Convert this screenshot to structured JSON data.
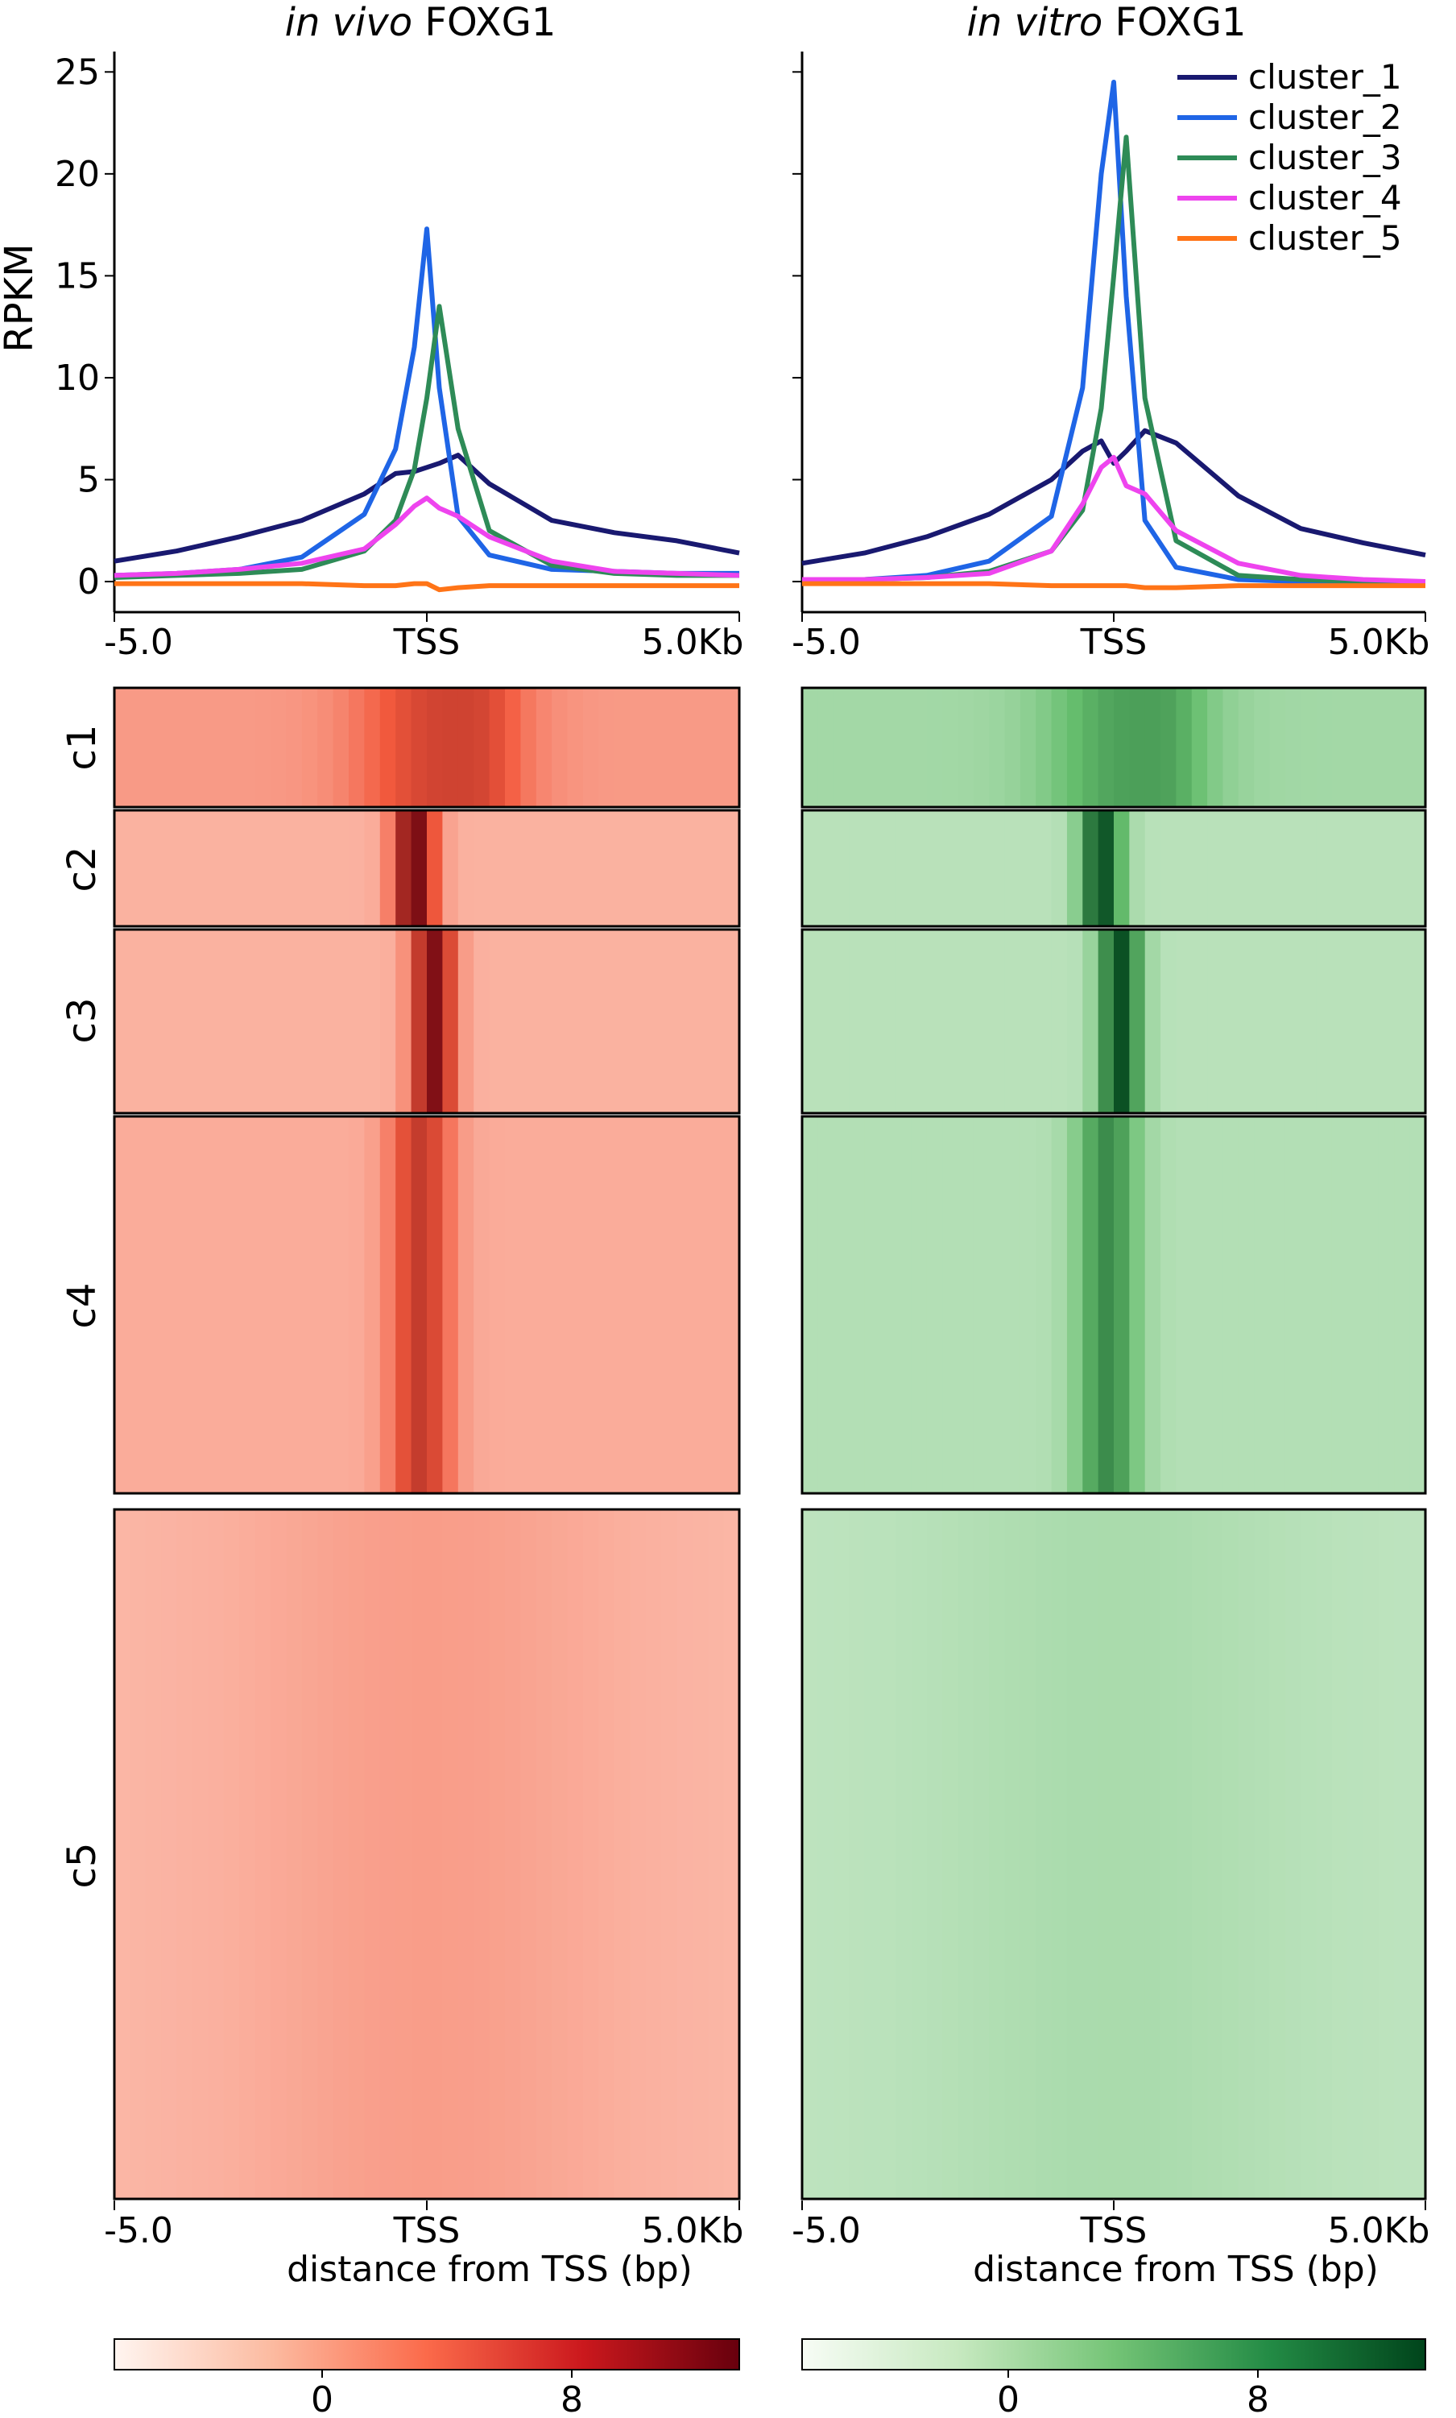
{
  "profiles": [
    {
      "title_italic": "in vivo",
      "title_rest": " FOXG1"
    },
    {
      "title_italic": "in vitro",
      "title_rest": " FOXG1"
    }
  ],
  "profile_ylabel": "RPKM",
  "profile_yticks": [
    "0",
    "5",
    "10",
    "15",
    "20",
    "25"
  ],
  "xticks": [
    "-5.0",
    "TSS",
    "5.0Kb"
  ],
  "heatmap_xlabel": "distance from TSS (bp)",
  "cluster_labels": [
    "c1",
    "c2",
    "c3",
    "c4",
    "c5"
  ],
  "colorbar_ticks": [
    "0",
    "8"
  ],
  "colors": {
    "cluster_1": "#191970",
    "cluster_2": "#1f65e6",
    "cluster_3": "#2e8b57",
    "cluster_4": "#ee44ee",
    "cluster_5": "#ff7417",
    "heatmap_left_low": "#fff5f0",
    "heatmap_left_high": "#67000d",
    "heatmap_right_low": "#f7fcf5",
    "heatmap_right_high": "#00441b"
  },
  "chart_data": [
    {
      "type": "line",
      "title": "in vivo FOXG1",
      "ylabel": "RPKM",
      "xlabel": "",
      "x": [
        -5000,
        -4000,
        -3000,
        -2000,
        -1000,
        -500,
        -200,
        0,
        200,
        500,
        1000,
        2000,
        3000,
        4000,
        5000
      ],
      "ylim": [
        -1.5,
        26
      ],
      "series": [
        {
          "name": "cluster_1",
          "values": [
            1.0,
            1.5,
            2.2,
            3.0,
            4.3,
            5.3,
            5.4,
            5.6,
            5.8,
            6.2,
            4.8,
            3.0,
            2.4,
            2.0,
            1.4
          ]
        },
        {
          "name": "cluster_2",
          "values": [
            0.3,
            0.4,
            0.6,
            1.2,
            3.3,
            6.5,
            11.5,
            17.3,
            9.5,
            3.2,
            1.3,
            0.6,
            0.5,
            0.4,
            0.4
          ]
        },
        {
          "name": "cluster_3",
          "values": [
            0.2,
            0.3,
            0.4,
            0.6,
            1.5,
            3.0,
            5.5,
            9.0,
            13.5,
            7.5,
            2.5,
            0.8,
            0.4,
            0.3,
            0.3
          ]
        },
        {
          "name": "cluster_4",
          "values": [
            0.3,
            0.4,
            0.6,
            0.9,
            1.6,
            2.8,
            3.7,
            4.1,
            3.6,
            3.2,
            2.2,
            1.0,
            0.5,
            0.4,
            0.3
          ]
        },
        {
          "name": "cluster_5",
          "values": [
            -0.1,
            -0.1,
            -0.1,
            -0.1,
            -0.2,
            -0.2,
            -0.1,
            -0.1,
            -0.4,
            -0.3,
            -0.2,
            -0.2,
            -0.2,
            -0.2,
            -0.2
          ]
        }
      ]
    },
    {
      "type": "line",
      "title": "in vitro FOXG1",
      "ylabel": "",
      "xlabel": "",
      "x": [
        -5000,
        -4000,
        -3000,
        -2000,
        -1000,
        -500,
        -200,
        0,
        200,
        500,
        1000,
        2000,
        3000,
        4000,
        5000
      ],
      "ylim": [
        -1.5,
        26
      ],
      "series": [
        {
          "name": "cluster_1",
          "values": [
            0.9,
            1.4,
            2.2,
            3.3,
            5.0,
            6.4,
            6.9,
            5.8,
            6.4,
            7.4,
            6.8,
            4.2,
            2.6,
            1.9,
            1.3
          ]
        },
        {
          "name": "cluster_2",
          "values": [
            0.0,
            0.1,
            0.3,
            1.0,
            3.2,
            9.5,
            20.0,
            24.5,
            14.0,
            3.0,
            0.7,
            0.1,
            0.0,
            0.0,
            0.0
          ]
        },
        {
          "name": "cluster_3",
          "values": [
            0.0,
            0.1,
            0.2,
            0.5,
            1.5,
            3.5,
            8.5,
            15.0,
            21.8,
            9.0,
            2.0,
            0.3,
            0.1,
            0.0,
            0.0
          ]
        },
        {
          "name": "cluster_4",
          "values": [
            0.1,
            0.1,
            0.2,
            0.4,
            1.5,
            3.8,
            5.6,
            6.1,
            4.7,
            4.3,
            2.5,
            0.9,
            0.3,
            0.1,
            0.0
          ]
        },
        {
          "name": "cluster_5",
          "values": [
            -0.1,
            -0.1,
            -0.1,
            -0.1,
            -0.2,
            -0.2,
            -0.2,
            -0.2,
            -0.2,
            -0.3,
            -0.3,
            -0.2,
            -0.2,
            -0.2,
            -0.2
          ]
        }
      ]
    },
    {
      "type": "heatmap",
      "title": "",
      "xlabel": "distance from TSS (bp)",
      "x_ticks": [
        "-5.0",
        "TSS",
        "5.0Kb"
      ],
      "row_groups": [
        "c1",
        "c2",
        "c3",
        "c4",
        "c5"
      ],
      "colorbar": {
        "label_ticks": [
          0,
          8
        ],
        "range": [
          -4,
          12
        ],
        "palette": "Reds"
      },
      "cluster_peak_intensity": [
        0.45,
        1.0,
        0.95,
        0.6,
        0.12
      ]
    },
    {
      "type": "heatmap",
      "title": "",
      "xlabel": "distance from TSS (bp)",
      "x_ticks": [
        "-5.0",
        "TSS",
        "5.0Kb"
      ],
      "row_groups": [
        "c1",
        "c2",
        "c3",
        "c4",
        "c5"
      ],
      "colorbar": {
        "label_ticks": [
          0,
          8
        ],
        "range": [
          -4,
          12
        ],
        "palette": "Greens"
      },
      "cluster_peak_intensity": [
        0.45,
        1.0,
        1.0,
        0.65,
        0.1
      ]
    }
  ]
}
